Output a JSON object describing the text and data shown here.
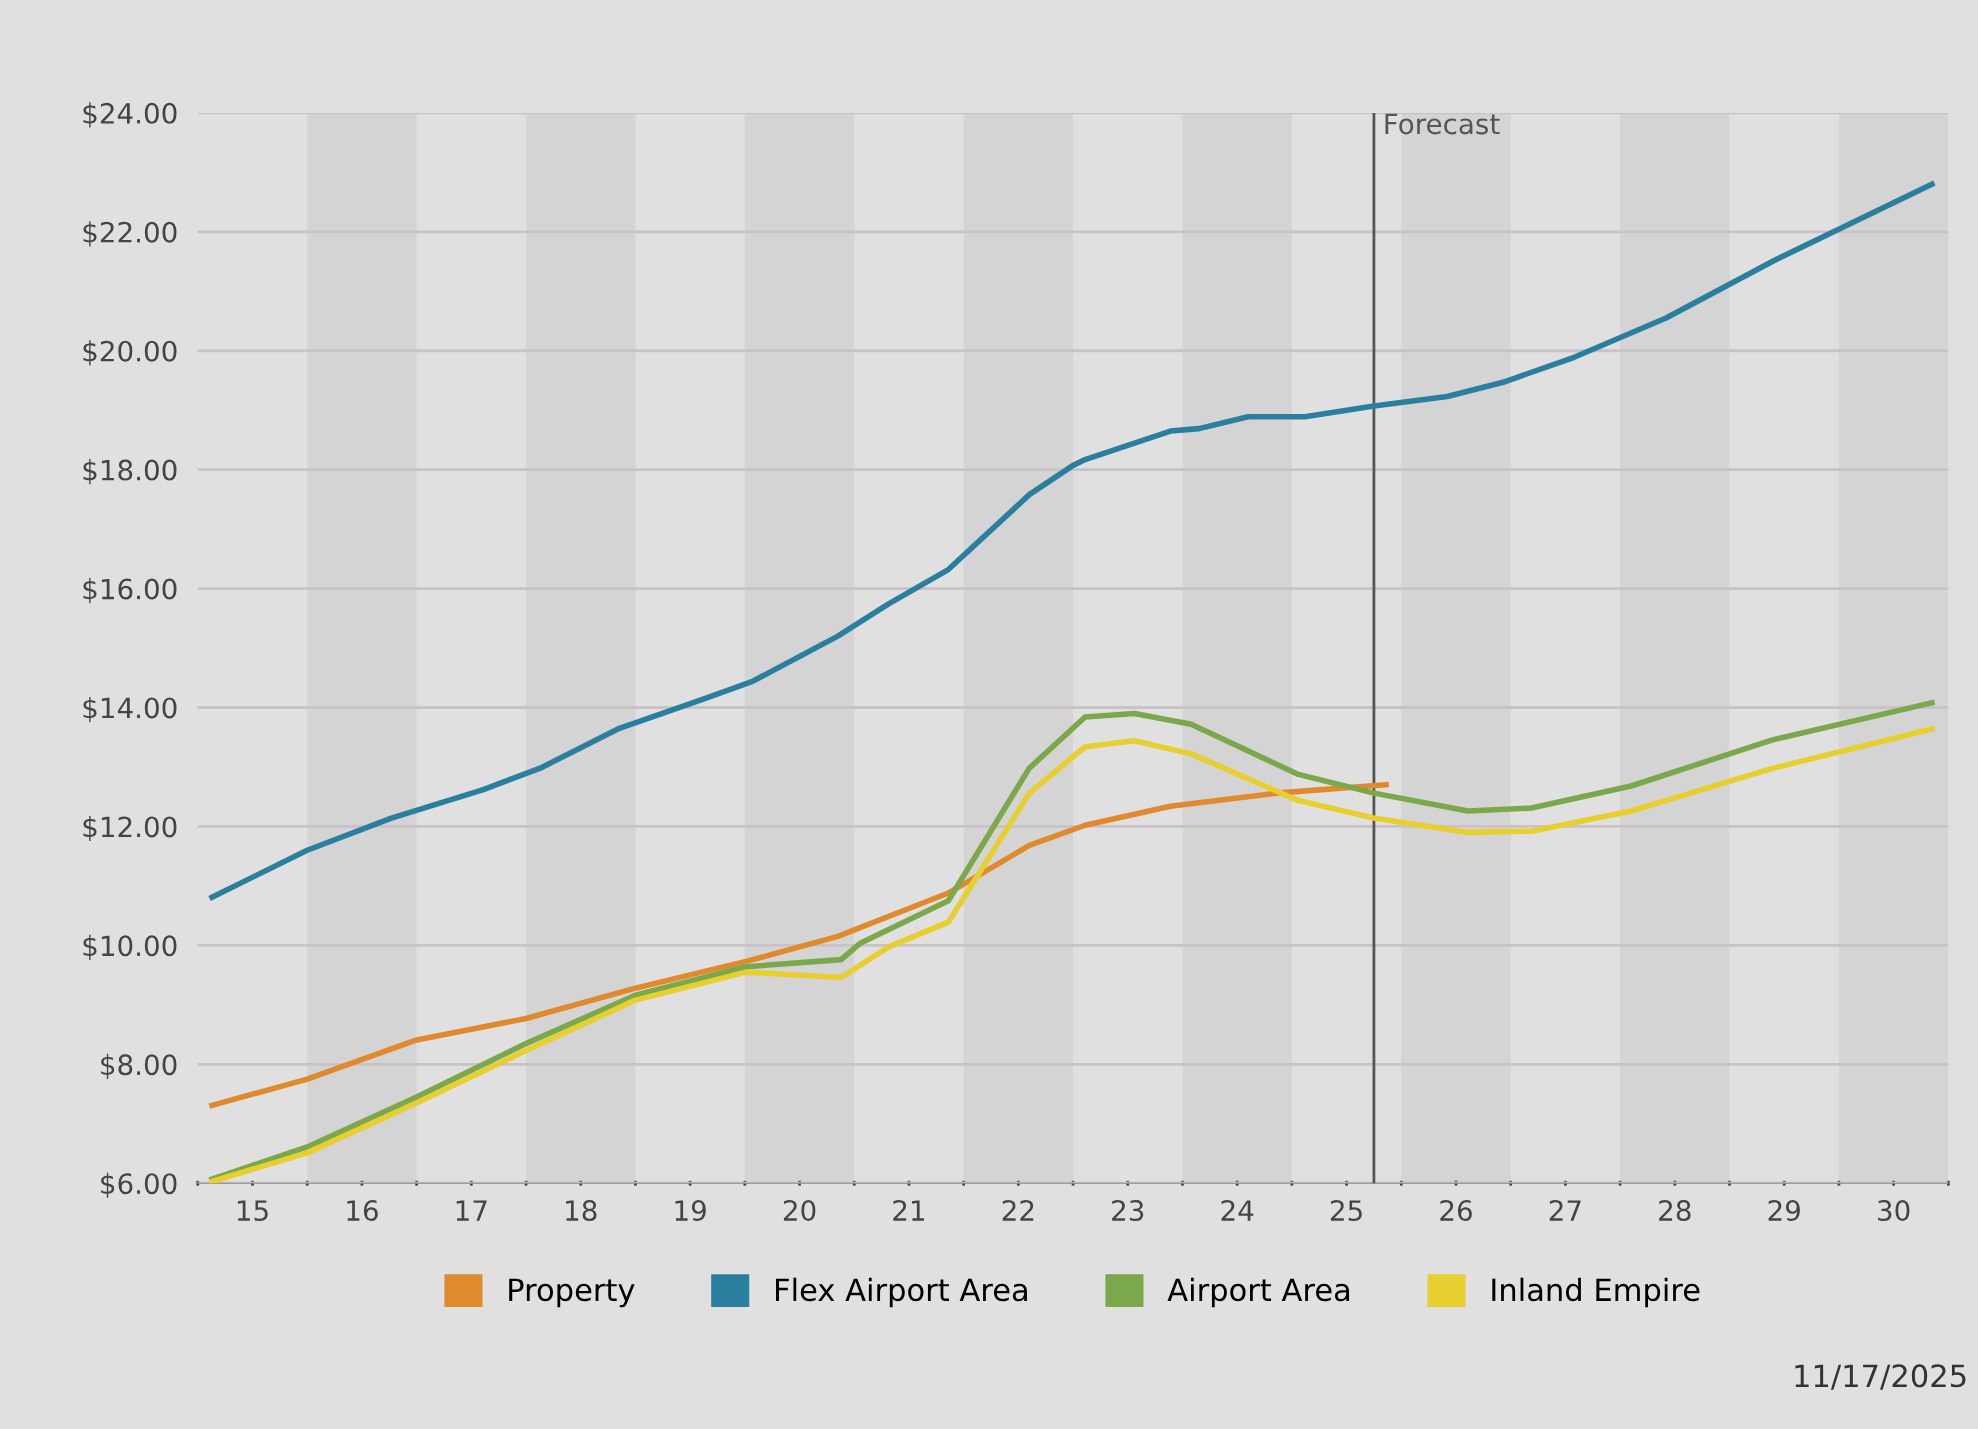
{
  "chart_data": {
    "type": "line",
    "xlim": [
      14.5,
      30.5
    ],
    "ylim": [
      6,
      24
    ],
    "yticks": [
      {
        "value": 6,
        "label": "$6.00"
      },
      {
        "value": 8,
        "label": "$8.00"
      },
      {
        "value": 10,
        "label": "$10.00"
      },
      {
        "value": 12,
        "label": "$12.00"
      },
      {
        "value": 14,
        "label": "$14.00"
      },
      {
        "value": 16,
        "label": "$16.00"
      },
      {
        "value": 18,
        "label": "$18.00"
      },
      {
        "value": 20,
        "label": "$20.00"
      },
      {
        "value": 22,
        "label": "$22.00"
      },
      {
        "value": 24,
        "label": "$24.00"
      }
    ],
    "xticks": [
      {
        "value": 14.5,
        "label": null
      },
      15,
      {
        "value": 15.5,
        "label": null
      },
      16,
      {
        "value": 16.5,
        "label": null
      },
      17,
      {
        "value": 17.5,
        "label": null
      },
      18,
      {
        "value": 18.5,
        "label": null
      },
      19,
      {
        "value": 19.5,
        "label": null
      },
      20,
      {
        "value": 20.5,
        "label": null
      },
      21,
      {
        "value": 21.5,
        "label": null
      },
      22,
      {
        "value": 22.5,
        "label": null
      },
      23,
      {
        "value": 23.5,
        "label": null
      },
      24,
      {
        "value": 24.5,
        "label": null
      },
      25,
      {
        "value": 25.5,
        "label": null
      },
      26,
      {
        "value": 26.5,
        "label": null
      },
      27,
      {
        "value": 27.5,
        "label": null
      },
      28,
      {
        "value": 28.5,
        "label": null
      },
      29,
      {
        "value": 29.5,
        "label": null
      },
      30,
      {
        "value": 30.5,
        "label": null
      }
    ],
    "grid": "y",
    "legend": "bottom",
    "marker": "none",
    "line_style": "solid",
    "series": [
      {
        "name": "Property",
        "color": "#e08a2e",
        "x": [
          14.63,
          15.5,
          16.5,
          17.5,
          18.5,
          19.51,
          20.35,
          21.36,
          22.1,
          22.61,
          23.39,
          24.36,
          25.36
        ],
        "values": [
          7.31,
          7.75,
          8.41,
          8.77,
          9.28,
          9.73,
          10.15,
          10.88,
          11.68,
          12.02,
          12.34,
          12.56,
          12.7
        ]
      },
      {
        "name": "Flex Airport Area",
        "color": "#2a7f9e",
        "x": [
          14.63,
          15.5,
          16.27,
          17.11,
          17.63,
          18.34,
          19.12,
          19.57,
          20.35,
          20.81,
          21.36,
          22.1,
          22.49,
          22.61,
          22.87,
          23.39,
          23.65,
          24.1,
          24.62,
          25.25,
          25.92,
          26.43,
          27.08,
          27.92,
          28.9,
          30.35
        ],
        "values": [
          10.81,
          11.6,
          12.14,
          12.62,
          12.98,
          13.64,
          14.14,
          14.44,
          15.2,
          15.74,
          16.32,
          17.58,
          18.06,
          18.17,
          18.33,
          18.65,
          18.69,
          18.89,
          18.89,
          19.07,
          19.23,
          19.47,
          19.89,
          20.55,
          21.51,
          22.8
        ]
      },
      {
        "name": "Airport Area",
        "color": "#7aa84a",
        "x": [
          14.63,
          15.5,
          16.5,
          17.5,
          18.5,
          19.51,
          20.38,
          20.55,
          21.36,
          22.1,
          22.61,
          23.06,
          23.58,
          24.55,
          25.25,
          26.11,
          26.69,
          27.6,
          28.9,
          30.35
        ],
        "values": [
          6.07,
          6.61,
          7.45,
          8.35,
          9.16,
          9.64,
          9.76,
          10.03,
          10.75,
          12.98,
          13.84,
          13.9,
          13.72,
          12.88,
          12.56,
          12.26,
          12.31,
          12.68,
          13.46,
          14.08
        ]
      },
      {
        "name": "Inland Empire",
        "color": "#e6cf2e",
        "x": [
          14.63,
          15.5,
          16.5,
          17.5,
          18.5,
          19.51,
          20.38,
          20.81,
          21.36,
          22.1,
          22.61,
          23.06,
          23.58,
          24.55,
          25.25,
          26.11,
          26.69,
          27.6,
          28.9,
          30.35
        ],
        "values": [
          6.03,
          6.51,
          7.35,
          8.23,
          9.08,
          9.55,
          9.46,
          9.97,
          10.39,
          12.56,
          13.34,
          13.44,
          13.22,
          12.44,
          12.14,
          11.9,
          11.92,
          12.26,
          12.98,
          13.64
        ]
      }
    ],
    "ref_lines": [
      {
        "axis": "x",
        "value": 25.25,
        "label": "Forecast",
        "color": "#555555",
        "line_style": "solid"
      }
    ],
    "bands": [
      {
        "axis": "x",
        "from": 15.5,
        "to": 16.5,
        "color": "#d4d4d4"
      },
      {
        "axis": "x",
        "from": 17.5,
        "to": 18.5,
        "color": "#d4d4d4"
      },
      {
        "axis": "x",
        "from": 19.5,
        "to": 20.5,
        "color": "#d4d4d4"
      },
      {
        "axis": "x",
        "from": 21.5,
        "to": 22.5,
        "color": "#d4d4d4"
      },
      {
        "axis": "x",
        "from": 23.5,
        "to": 24.5,
        "color": "#d4d4d4"
      },
      {
        "axis": "x",
        "from": 25.5,
        "to": 26.5,
        "color": "#d4d4d4"
      },
      {
        "axis": "x",
        "from": 27.5,
        "to": 28.5,
        "color": "#d4d4d4"
      },
      {
        "axis": "x",
        "from": 29.5,
        "to": 30.5,
        "color": "#d4d4d4"
      }
    ],
    "annotations": [
      "11/17/2025"
    ]
  }
}
